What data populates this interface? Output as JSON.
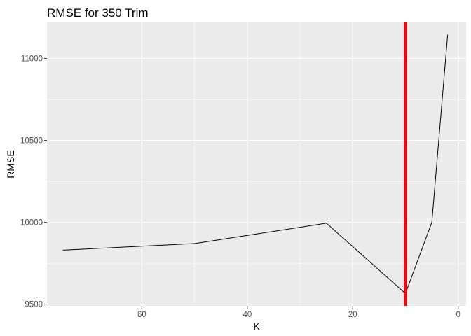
{
  "chart_data": {
    "type": "line",
    "title": "RMSE for 350 Trim",
    "xlabel": "K",
    "ylabel": "RMSE",
    "x_reversed": true,
    "xlim": [
      78,
      -1.5
    ],
    "ylim": [
      9490,
      11220
    ],
    "x_ticks": [
      60,
      40,
      20,
      0
    ],
    "y_ticks": [
      9500,
      10000,
      10500,
      11000
    ],
    "series": [
      {
        "x": [
          75,
          50,
          25,
          10,
          5,
          2
        ],
        "y": [
          9830,
          9870,
          9995,
          9565,
          10000,
          11145
        ]
      }
    ],
    "vline": {
      "x": 10,
      "color": "#FF0000"
    },
    "line_color": "#000000",
    "panel_background": "#EBEBEB",
    "grid": true,
    "legend": "none"
  }
}
